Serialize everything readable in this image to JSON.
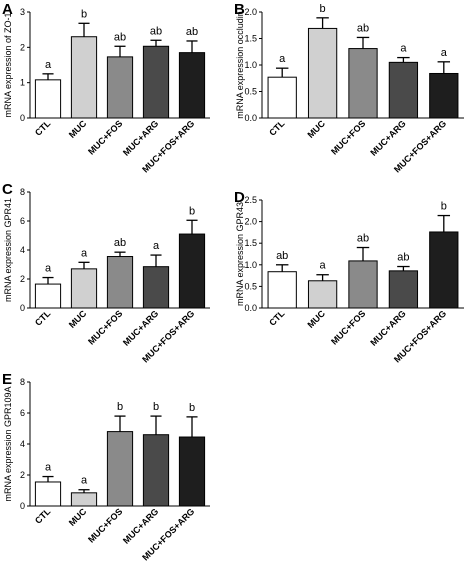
{
  "figure": {
    "chart_data": [
      {
        "panel": "A",
        "type": "bar",
        "categories": [
          "CTL",
          "MUC",
          "MUC+FOS",
          "MUC+ARG",
          "MUC+FOS+ARG"
        ],
        "values": [
          1.08,
          2.3,
          1.73,
          2.03,
          1.85
        ],
        "errors": [
          0.17,
          0.38,
          0.3,
          0.17,
          0.33
        ],
        "significance": [
          "a",
          "b",
          "ab",
          "ab",
          "ab"
        ],
        "bar_colors": [
          "#ffffff",
          "#d0d0d0",
          "#8a8a8a",
          "#4a4a4a",
          "#1e1e1e"
        ],
        "ylabel": "mRNA expression of ZO-1",
        "ylim": [
          0,
          3
        ],
        "yticks": [
          0,
          1,
          2,
          3
        ],
        "ytick_labels": [
          "0",
          "1",
          "2",
          "3"
        ]
      },
      {
        "panel": "B",
        "type": "bar",
        "categories": [
          "CTL",
          "MUC",
          "MUC+FOS",
          "MUC+ARG",
          "MUC+FOS+ARG"
        ],
        "values": [
          0.77,
          1.69,
          1.31,
          1.05,
          0.84
        ],
        "errors": [
          0.17,
          0.2,
          0.21,
          0.09,
          0.22
        ],
        "significance": [
          "a",
          "b",
          "ab",
          "a",
          "a"
        ],
        "bar_colors": [
          "#ffffff",
          "#d0d0d0",
          "#8a8a8a",
          "#4a4a4a",
          "#1e1e1e"
        ],
        "ylabel": "mRNA expression occludin",
        "ylim": [
          0,
          2
        ],
        "yticks": [
          0,
          0.5,
          1,
          1.5,
          2
        ],
        "ytick_labels": [
          "0.0",
          "0.5",
          "1.0",
          "1.5",
          "2.0"
        ]
      },
      {
        "panel": "C",
        "type": "bar",
        "categories": [
          "CTL",
          "MUC",
          "MUC+FOS",
          "MUC+ARG",
          "MUC+FOS+ARG"
        ],
        "values": [
          1.65,
          2.7,
          3.55,
          2.85,
          5.1
        ],
        "errors": [
          0.45,
          0.45,
          0.3,
          0.8,
          0.95
        ],
        "significance": [
          "a",
          "a",
          "ab",
          "a",
          "b"
        ],
        "bar_colors": [
          "#ffffff",
          "#d0d0d0",
          "#8a8a8a",
          "#4a4a4a",
          "#1e1e1e"
        ],
        "ylabel": "mRNA expression GPR41",
        "ylim": [
          0,
          8
        ],
        "yticks": [
          0,
          2,
          4,
          6,
          8
        ],
        "ytick_labels": [
          "0",
          "2",
          "4",
          "6",
          "8"
        ]
      },
      {
        "panel": "D",
        "type": "bar",
        "categories": [
          "CTL",
          "MUC",
          "MUC+FOS",
          "MUC+ARG",
          "MUC+FOS+ARG"
        ],
        "values": [
          0.84,
          0.63,
          1.09,
          0.86,
          1.76
        ],
        "errors": [
          0.16,
          0.14,
          0.31,
          0.1,
          0.38
        ],
        "significance": [
          "ab",
          "a",
          "ab",
          "ab",
          "b"
        ],
        "bar_colors": [
          "#ffffff",
          "#d0d0d0",
          "#8a8a8a",
          "#4a4a4a",
          "#1e1e1e"
        ],
        "ylabel": "mRNA expression GPR43",
        "ylim": [
          0,
          2.5
        ],
        "yticks": [
          0,
          0.5,
          1,
          1.5,
          2,
          2.5
        ],
        "ytick_labels": [
          "0.0",
          "0.5",
          "1.0",
          "1.5",
          "2.0",
          "2.5"
        ]
      },
      {
        "panel": "E",
        "type": "bar",
        "categories": [
          "CTL",
          "MUC",
          "MUC+FOS",
          "MUC+ARG",
          "MUC+FOS+ARG"
        ],
        "values": [
          1.55,
          0.85,
          4.8,
          4.6,
          4.45
        ],
        "errors": [
          0.35,
          0.2,
          1.0,
          1.2,
          1.3
        ],
        "significance": [
          "a",
          "a",
          "b",
          "b",
          "b"
        ],
        "bar_colors": [
          "#ffffff",
          "#d0d0d0",
          "#8a8a8a",
          "#4a4a4a",
          "#1e1e1e"
        ],
        "ylabel": "mRNA expression GPR109A",
        "ylim": [
          0,
          8
        ],
        "yticks": [
          0,
          2,
          4,
          6,
          8
        ],
        "ytick_labels": [
          "0",
          "2",
          "4",
          "6",
          "8"
        ]
      }
    ]
  }
}
